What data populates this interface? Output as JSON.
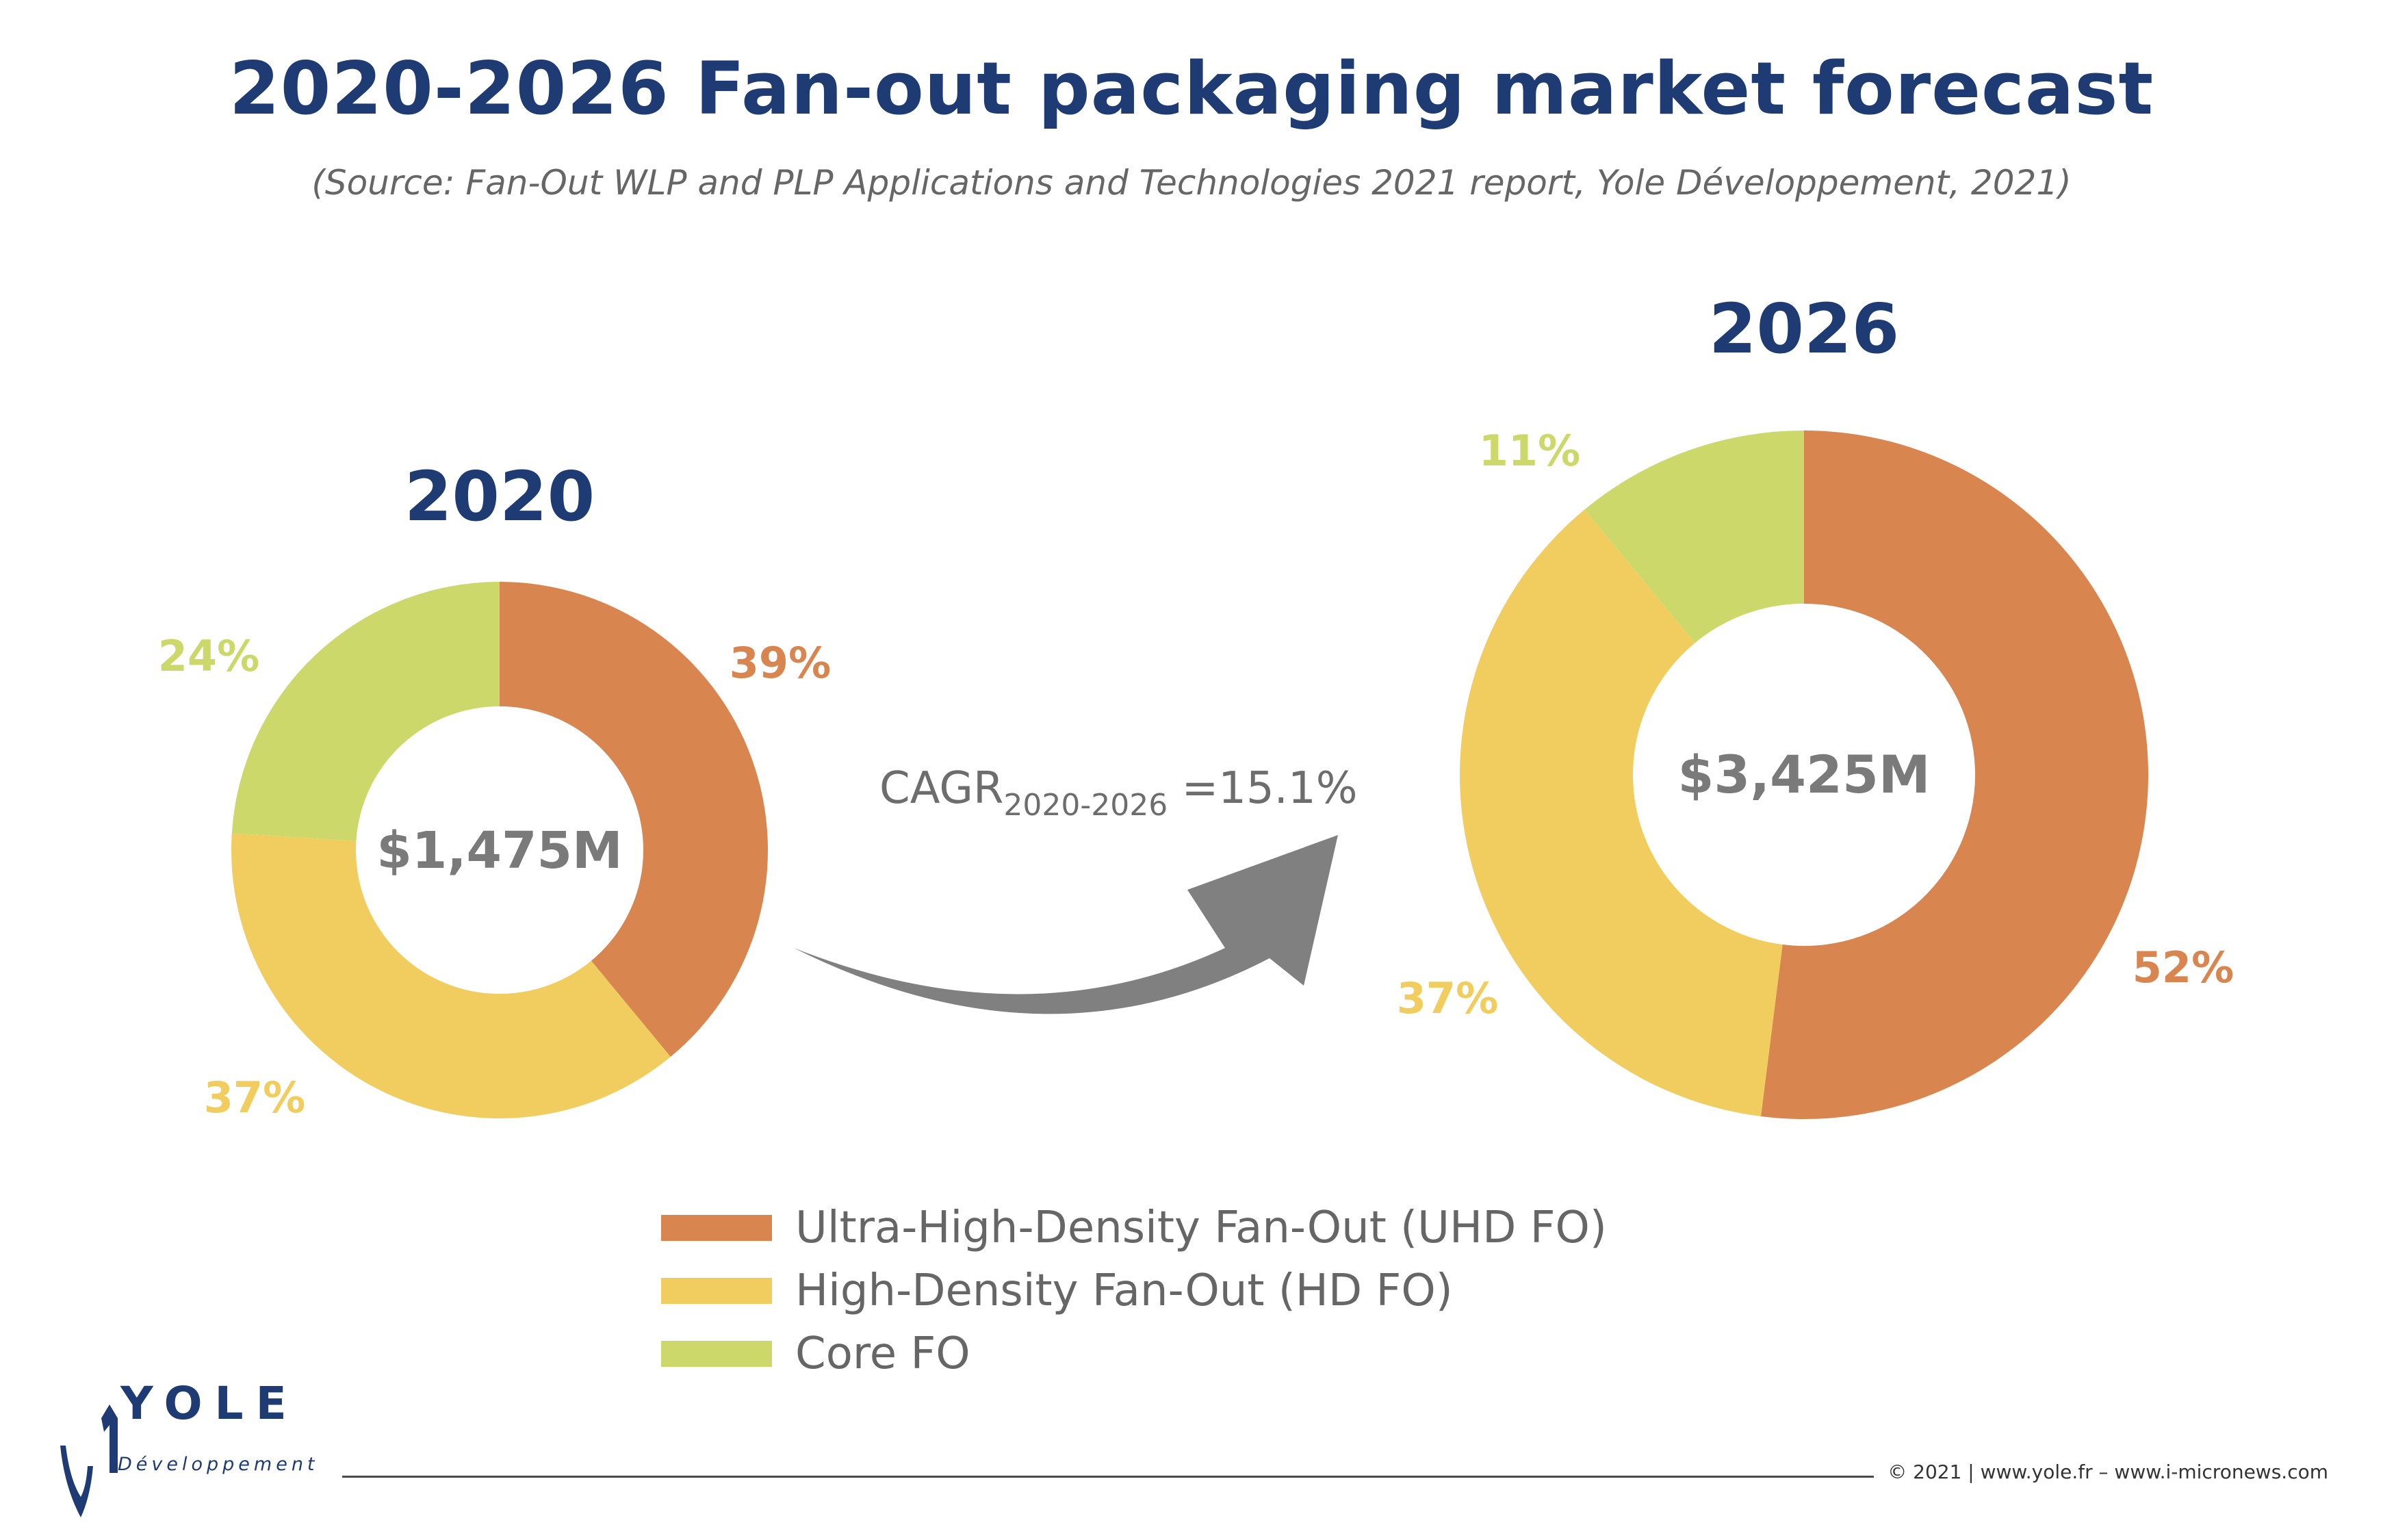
{
  "title": "2020-2026 Fan-out packaging market forecast",
  "subtitle": "(Source: Fan-Out WLP and PLP Applications and Technologies 2021 report, Yole Développement, 2021)",
  "cagr": {
    "label": "CAGR",
    "period": "2020-2026",
    "value": "=15.1%"
  },
  "chart_data": [
    {
      "type": "pie",
      "title": "2020",
      "center_label": "$1,475M",
      "categories": [
        "Ultra-High-Density Fan-Out (UHD FO)",
        "High-Density Fan-Out (HD FO)",
        "Core FO"
      ],
      "values": [
        39,
        37,
        24
      ],
      "labels": [
        "39%",
        "37%",
        "24%"
      ],
      "colors": [
        "#d98550",
        "#f0cd5e",
        "#ccd96a"
      ],
      "donut": true
    },
    {
      "type": "pie",
      "title": "2026",
      "center_label": "$3,425M",
      "categories": [
        "Ultra-High-Density Fan-Out (UHD FO)",
        "High-Density Fan-Out (HD FO)",
        "Core FO"
      ],
      "values": [
        52,
        37,
        11
      ],
      "labels": [
        "52%",
        "37%",
        "11%"
      ],
      "colors": [
        "#d98550",
        "#f0cd5e",
        "#ccd96a"
      ],
      "donut": true
    }
  ],
  "legend": {
    "placement": "bottom-center",
    "items": [
      {
        "label": "Ultra-High-Density Fan-Out (UHD FO)",
        "color": "#d98550"
      },
      {
        "label": "High-Density Fan-Out (HD FO)",
        "color": "#f0cd5e"
      },
      {
        "label": "Core FO",
        "color": "#ccd96a"
      }
    ]
  },
  "colors": {
    "title": "#1f3b73",
    "center_text": "#7a7a7a",
    "arrow": "#808080"
  },
  "logo": {
    "word": "YOLE",
    "sub": "Développement"
  },
  "footer": {
    "copyright": "© 2021 | www.yole.fr – www.i-micronews.com"
  }
}
